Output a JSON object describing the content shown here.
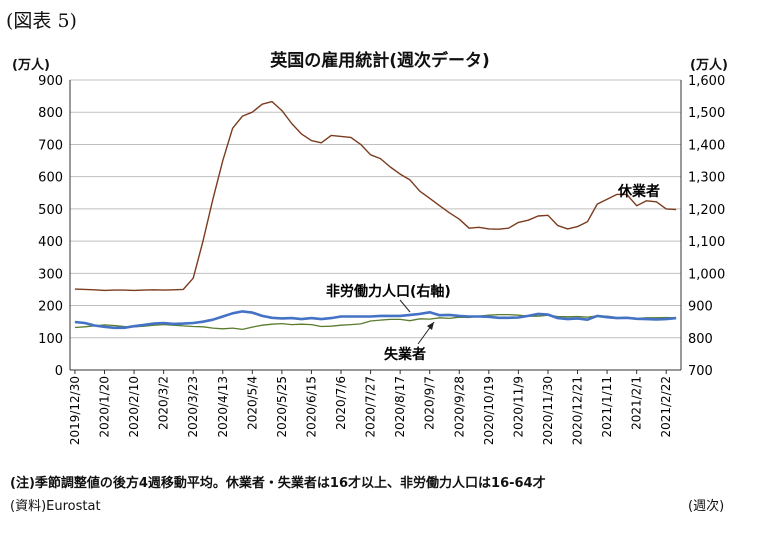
{
  "figure_label": "(図表 5)",
  "chart_data": {
    "type": "line",
    "title": "英国の雇用統計(週次データ)",
    "y_left_unit": "(万人)",
    "y_right_unit": "(万人)",
    "x_unit": "(週次)",
    "ylim_left": [
      0,
      900
    ],
    "ylim_right": [
      700,
      1600
    ],
    "y_left_ticks": [
      "0",
      "100",
      "200",
      "300",
      "400",
      "500",
      "600",
      "700",
      "800",
      "900"
    ],
    "y_right_ticks": [
      "700",
      "800",
      "900",
      "1,000",
      "1,100",
      "1,200",
      "1,300",
      "1,400",
      "1,500",
      "1,600"
    ],
    "x_ticks": [
      "2019/12/30",
      "2020/1/20",
      "2020/2/10",
      "2020/3/2",
      "2020/3/23",
      "2020/4/13",
      "2020/5/4",
      "2020/5/25",
      "2020/6/15",
      "2020/7/6",
      "2020/7/27",
      "2020/8/17",
      "2020/9/7",
      "2020/9/28",
      "2020/10/19",
      "2020/11/9",
      "2020/11/30",
      "2020/12/21",
      "2021/1/11",
      "2021/2/1",
      "2021/2/22"
    ],
    "grid": true,
    "series": [
      {
        "name": "休業者",
        "axis": "right",
        "color": "#7b3b1e",
        "values": [
          951,
          950,
          949,
          947,
          948,
          948,
          947,
          948,
          949,
          948,
          949,
          950,
          985,
          1100,
          1230,
          1350,
          1450,
          1488,
          1500,
          1525,
          1533,
          1505,
          1465,
          1432,
          1412,
          1405,
          1428,
          1425,
          1422,
          1400,
          1368,
          1356,
          1330,
          1308,
          1290,
          1255,
          1233,
          1210,
          1188,
          1168,
          1140,
          1143,
          1138,
          1137,
          1140,
          1158,
          1165,
          1178,
          1180,
          1148,
          1138,
          1145,
          1160,
          1215,
          1230,
          1245,
          1245,
          1210,
          1225,
          1222,
          1200,
          1198
        ]
      },
      {
        "name": "非労働力人口(右軸)",
        "axis": "right",
        "color": "#4472c4",
        "values": [
          849,
          846,
          838,
          834,
          831,
          831,
          836,
          840,
          844,
          846,
          843,
          844,
          846,
          850,
          856,
          866,
          876,
          882,
          878,
          868,
          862,
          860,
          861,
          858,
          861,
          858,
          861,
          866,
          866,
          866,
          866,
          868,
          868,
          868,
          871,
          874,
          879,
          870,
          871,
          868,
          866,
          866,
          865,
          862,
          862,
          863,
          868,
          874,
          872,
          861,
          858,
          860,
          856,
          868,
          864,
          861,
          862,
          859,
          858,
          857,
          858,
          861
        ]
      },
      {
        "name": "失業者",
        "axis": "left",
        "color": "#5b7c2e",
        "values": [
          132,
          134,
          137,
          140,
          138,
          135,
          134,
          136,
          139,
          141,
          139,
          137,
          135,
          134,
          130,
          128,
          130,
          126,
          133,
          139,
          142,
          144,
          141,
          142,
          141,
          135,
          136,
          139,
          141,
          143,
          152,
          155,
          157,
          157,
          153,
          159,
          158,
          162,
          160,
          164,
          163,
          167,
          170,
          172,
          172,
          170,
          167,
          167,
          170,
          166,
          165,
          166,
          164,
          168,
          167,
          163,
          161,
          160,
          162,
          162,
          163,
          162
        ]
      }
    ],
    "annotations": [
      {
        "text": "休業者",
        "series": "休業者"
      },
      {
        "text": "非労働力人口(右軸)",
        "series": "非労働力人口(右軸)"
      },
      {
        "text": "失業者",
        "series": "失業者"
      }
    ]
  },
  "footer": {
    "note": "(注)季節調整値の後方4週移動平均。休業者・失業者は16才以上、非労働力人口は16-64才",
    "source": "(資料)Eurostat"
  }
}
